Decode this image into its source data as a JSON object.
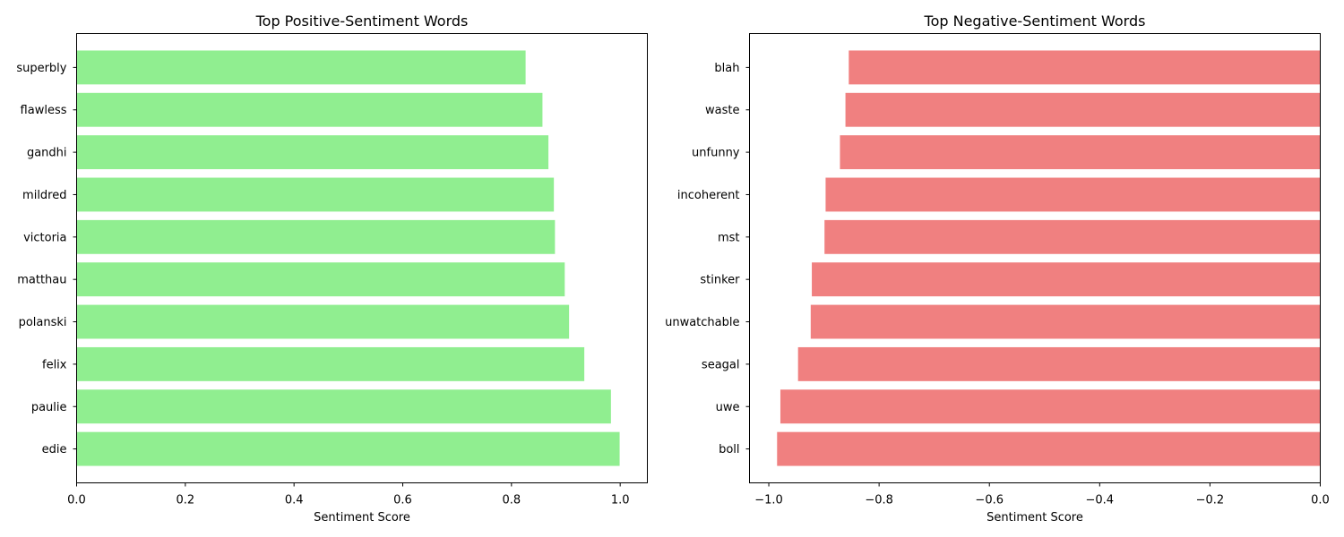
{
  "chart_data": [
    {
      "type": "bar",
      "orientation": "horizontal",
      "title": "Top Positive-Sentiment Words",
      "xlabel": "Sentiment Score",
      "ylabel": "",
      "xlim": [
        0,
        1.05
      ],
      "xticks": [
        0.0,
        0.2,
        0.4,
        0.6,
        0.8,
        1.0
      ],
      "xtick_labels": [
        "0.0",
        "0.2",
        "0.4",
        "0.6",
        "0.8",
        "1.0"
      ],
      "color": "#90ee90",
      "grid": false,
      "categories": [
        "edie",
        "paulie",
        "felix",
        "polanski",
        "matthau",
        "victoria",
        "mildred",
        "gandhi",
        "flawless",
        "superbly"
      ],
      "values": [
        0.999,
        0.983,
        0.934,
        0.906,
        0.898,
        0.88,
        0.878,
        0.868,
        0.857,
        0.826
      ]
    },
    {
      "type": "bar",
      "orientation": "horizontal",
      "title": "Top Negative-Sentiment Words",
      "xlabel": "Sentiment Score",
      "ylabel": "",
      "xlim": [
        -1.035,
        0.0
      ],
      "xticks": [
        -1.0,
        -0.8,
        -0.6,
        -0.4,
        -0.2,
        0.0
      ],
      "xtick_labels": [
        "−1.0",
        "−0.8",
        "−0.6",
        "−0.4",
        "−0.2",
        "0.0"
      ],
      "color": "#f08080",
      "grid": false,
      "categories": [
        "boll",
        "uwe",
        "seagal",
        "unwatchable",
        "stinker",
        "mst",
        "incoherent",
        "unfunny",
        "waste",
        "blah"
      ],
      "values": [
        -0.985,
        -0.979,
        -0.947,
        -0.924,
        -0.922,
        -0.899,
        -0.897,
        -0.871,
        -0.861,
        -0.855
      ]
    }
  ]
}
